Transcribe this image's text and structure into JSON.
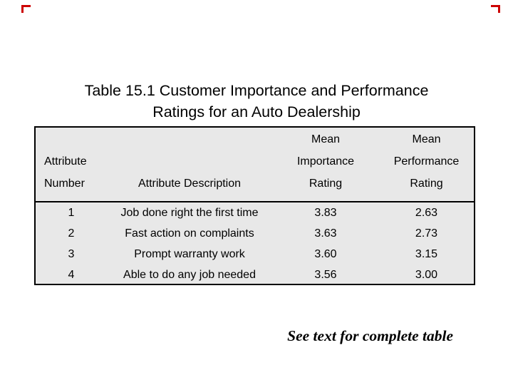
{
  "slide": {
    "title": {
      "line1": "Table 15.1 Customer Importance and Performance",
      "line2": "Ratings for an Auto Dealership"
    },
    "footnote": "See text for complete table",
    "colors": {
      "accent": "#cc0000",
      "table_bg": "#e8e8e8",
      "border": "#000000"
    }
  },
  "table": {
    "header": {
      "col1": {
        "line1": "Attribute",
        "line2": "Number"
      },
      "col2": {
        "line1": "Attribute Description"
      },
      "col3": {
        "line1": "Mean",
        "line2": "Importance",
        "line3": "Rating"
      },
      "col4": {
        "line1": "Mean",
        "line2": "Performance",
        "line3": "Rating"
      }
    },
    "rows": [
      {
        "number": "1",
        "description": "Job done right the first time",
        "importance": "3.83",
        "performance": "2.63"
      },
      {
        "number": "2",
        "description": "Fast action on complaints",
        "importance": "3.63",
        "performance": "2.73"
      },
      {
        "number": "3",
        "description": "Prompt warranty work",
        "importance": "3.60",
        "performance": "3.15"
      },
      {
        "number": "4",
        "description": "Able to do any job needed",
        "importance": "3.56",
        "performance": "3.00"
      }
    ]
  }
}
